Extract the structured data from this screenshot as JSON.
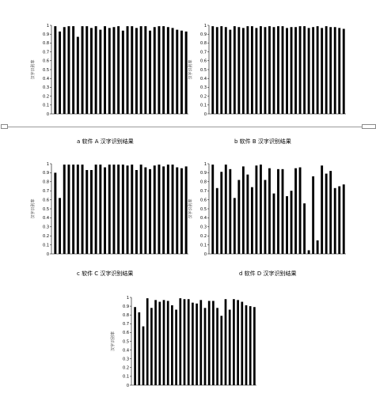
{
  "charts": [
    {
      "id": "a",
      "caption": "a 软件 A 汉字识别结果",
      "chart_data": {
        "type": "bar",
        "ylabel": "汉字识别率",
        "ylim": [
          0,
          1
        ],
        "yticks": [
          "0",
          "0.1",
          "0.2",
          "0.3",
          "0.4",
          "0.5",
          "0.6",
          "0.7",
          "0.8",
          "0.9",
          "1"
        ],
        "values": [
          0.99,
          0.93,
          0.98,
          0.99,
          0.99,
          0.87,
          0.99,
          0.99,
          0.97,
          0.99,
          0.95,
          0.99,
          0.97,
          0.98,
          0.99,
          0.94,
          0.99,
          0.99,
          0.97,
          0.99,
          0.99,
          0.94,
          0.98,
          0.99,
          0.99,
          0.98,
          0.97,
          0.95,
          0.94,
          0.93
        ]
      }
    },
    {
      "id": "b",
      "caption": "b 软件 B 汉字识别结果",
      "chart_data": {
        "type": "bar",
        "ylabel": "汉字识别率",
        "ylim": [
          0,
          1
        ],
        "yticks": [
          "0",
          "0.1",
          "0.2",
          "0.3",
          "0.4",
          "0.5",
          "0.6",
          "0.7",
          "0.8",
          "0.9",
          "1"
        ],
        "values": [
          0.99,
          0.98,
          0.99,
          0.98,
          0.95,
          0.99,
          0.98,
          0.97,
          0.99,
          0.99,
          0.97,
          0.99,
          0.98,
          0.99,
          0.98,
          0.99,
          0.99,
          0.97,
          0.98,
          0.98,
          0.99,
          0.99,
          0.97,
          0.98,
          0.99,
          0.97,
          0.99,
          0.98,
          0.98,
          0.97,
          0.96
        ]
      }
    },
    {
      "id": "c",
      "caption": "c 软件 C 汉字识别结果",
      "chart_data": {
        "type": "bar",
        "ylabel": "汉字识别率",
        "ylim": [
          0,
          1
        ],
        "yticks": [
          "0",
          "0.1",
          "0.2",
          "0.3",
          "0.4",
          "0.5",
          "0.6",
          "0.7",
          "0.8",
          "0.9",
          "1"
        ],
        "values": [
          0.9,
          0.62,
          0.99,
          0.99,
          0.99,
          0.99,
          0.99,
          0.93,
          0.93,
          0.99,
          0.99,
          0.96,
          0.99,
          0.99,
          0.99,
          0.99,
          0.98,
          0.99,
          0.93,
          0.99,
          0.96,
          0.94,
          0.98,
          0.99,
          0.97,
          0.99,
          0.99,
          0.96,
          0.95,
          0.97
        ]
      }
    },
    {
      "id": "d",
      "caption": "d 软件 D 汉字识别结果",
      "chart_data": {
        "type": "bar",
        "ylabel": "汉字识别率",
        "ylim": [
          0,
          1
        ],
        "yticks": [
          "0",
          "0.1",
          "0.2",
          "0.3",
          "0.4",
          "0.5",
          "0.6",
          "0.7",
          "0.8",
          "0.9",
          "1"
        ],
        "values": [
          0.99,
          0.73,
          0.91,
          0.99,
          0.94,
          0.62,
          0.82,
          0.97,
          0.88,
          0.74,
          0.98,
          0.99,
          0.82,
          0.95,
          0.67,
          0.94,
          0.94,
          0.64,
          0.7,
          0.95,
          0.96,
          0.56,
          0.04,
          0.86,
          0.15,
          0.98,
          0.89,
          0.92,
          0.73,
          0.75,
          0.77
        ]
      }
    },
    {
      "id": "e",
      "caption": "",
      "chart_data": {
        "type": "bar",
        "ylabel": "汉字识别率",
        "ylim": [
          0,
          1
        ],
        "yticks": [
          "0",
          "0.1",
          "0.2",
          "0.3",
          "0.4",
          "0.5",
          "0.6",
          "0.7",
          "0.8",
          "0.9",
          "1"
        ],
        "values": [
          0.89,
          0.83,
          0.67,
          0.99,
          0.88,
          0.97,
          0.95,
          0.97,
          0.96,
          0.91,
          0.86,
          0.99,
          0.98,
          0.98,
          0.94,
          0.93,
          0.97,
          0.88,
          0.96,
          0.96,
          0.88,
          0.79,
          0.98,
          0.86,
          0.98,
          0.97,
          0.95,
          0.91,
          0.9,
          0.89
        ]
      }
    }
  ]
}
